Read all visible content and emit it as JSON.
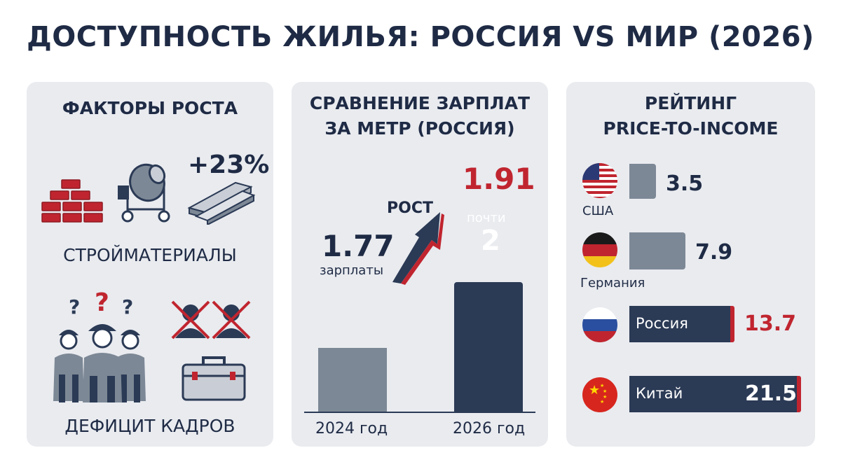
{
  "title": "ДОСТУПНОСТЬ ЖИЛЬЯ: РОССИЯ VS МИР (2026)",
  "factors": {
    "heading": "ФАКТОРЫ РОСТА",
    "percent": "+23%",
    "materials_label": "СТРОЙМАТЕРИАЛЫ",
    "shortage_label": "ДЕФИЦИТ КАДРОВ",
    "question_marks": [
      "?",
      "?",
      "?"
    ],
    "icons": [
      "bricks-icon",
      "concrete-mixer-icon",
      "lumber-icon",
      "workers-icon",
      "crossed-person-icon",
      "toolbox-icon"
    ]
  },
  "salary": {
    "heading_line1": "СРАВНЕНИЕ ЗАРПЛАТ",
    "heading_line2": "ЗА МЕТР (РОССИЯ)",
    "arrow_label": "РОСТ",
    "chart_data": {
      "type": "bar",
      "categories": [
        "2024 год",
        "2026 год"
      ],
      "values": [
        1.77,
        1.91
      ],
      "value_labels": [
        "1.77",
        "1.91"
      ],
      "bar_captions": [
        "зарплаты",
        "почти"
      ],
      "bar_big": [
        "",
        "2"
      ],
      "colors": [
        "#7d8896",
        "#2b3a55"
      ]
    }
  },
  "rating": {
    "heading_line1": "РЕЙТИНГ",
    "heading_line2": "PRICE-TO-INCOME",
    "chart_data": {
      "type": "bar",
      "orientation": "horizontal",
      "categories": [
        "США",
        "Германия",
        "Россия",
        "Китай"
      ],
      "values": [
        3.5,
        7.9,
        13.7,
        21.5
      ],
      "value_labels": [
        "3.5",
        "7.9",
        "13.7",
        "21.5"
      ],
      "flags": [
        "us-flag-icon",
        "germany-flag-icon",
        "russia-flag-icon",
        "china-flag-icon"
      ]
    }
  },
  "colors": {
    "navy": "#2b3a55",
    "gray": "#7d8896",
    "red": "#c0252f",
    "panel": "#e9ebef"
  }
}
